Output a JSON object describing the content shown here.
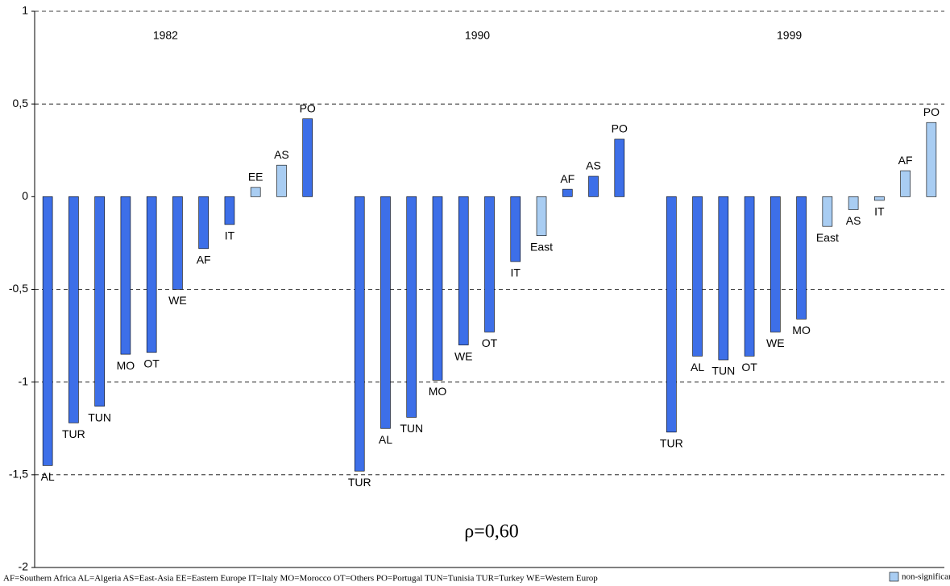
{
  "chart_data": {
    "type": "bar",
    "categories": [
      "AL",
      "TUR",
      "TUN",
      "MO",
      "OT",
      "WE",
      "AF",
      "IT",
      "EE",
      "AS",
      "PO",
      null,
      "TUR",
      "AL",
      "TUN",
      "MO",
      "WE",
      "OT",
      "IT",
      "East",
      "AF",
      "AS",
      "PO",
      null,
      "TUR",
      "AL",
      "TUN",
      "OT",
      "WE",
      "MO",
      "East",
      "AS",
      "IT",
      "AF",
      "PO"
    ],
    "values": [
      -1.45,
      -1.22,
      -1.13,
      -0.85,
      -0.84,
      -0.5,
      -0.28,
      -0.15,
      0.05,
      0.17,
      0.42,
      null,
      -1.48,
      -1.25,
      -1.19,
      -0.99,
      -0.8,
      -0.73,
      -0.35,
      -0.21,
      0.04,
      0.11,
      0.31,
      null,
      -1.27,
      -0.86,
      -0.88,
      -0.86,
      -0.73,
      -0.66,
      -0.16,
      -0.07,
      -0.02,
      0.14,
      0.4
    ],
    "significant": [
      true,
      true,
      true,
      true,
      true,
      true,
      true,
      true,
      false,
      false,
      true,
      null,
      true,
      true,
      true,
      true,
      true,
      true,
      true,
      false,
      true,
      true,
      true,
      null,
      true,
      true,
      true,
      true,
      true,
      true,
      false,
      false,
      false,
      false,
      false
    ],
    "colors": {
      "significant": "#3d6fe8",
      "non_significant": "#a9cdf2"
    },
    "groups": [
      "1982",
      "1990",
      "1999"
    ],
    "ylim": [
      -2,
      1
    ],
    "yticks": [
      -2,
      {
        "value": -1.5,
        "label": "-1,5"
      },
      -1,
      {
        "value": -0.5,
        "label": "-0,5"
      },
      0,
      {
        "value": 0.5,
        "label": "0,5"
      },
      1
    ],
    "grid": true,
    "annotation": "ρ=0,60",
    "footnote": "AF=Southern Africa AL=Algeria  AS=East-Asia EE=Eastern Europe IT=Italy MO=Morocco OT=Others PO=Portugal TUN=Tunisia  TUR=Turkey  WE=Western Europ",
    "legend": {
      "label": "non-significant"
    }
  }
}
